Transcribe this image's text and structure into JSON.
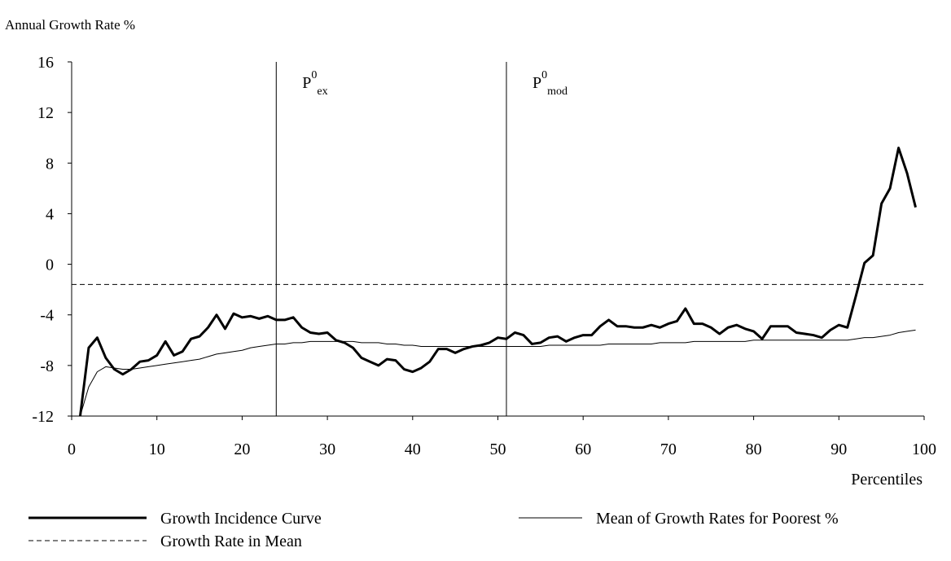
{
  "chart_data": {
    "type": "line",
    "ylabel": "Annual Growth Rate %",
    "xlabel": "Percentiles",
    "xlim": [
      0,
      100
    ],
    "xticks": [
      0,
      10,
      20,
      30,
      40,
      50,
      60,
      70,
      80,
      90,
      100
    ],
    "ylim": [
      -12,
      16
    ],
    "yticks": [
      -12,
      -8,
      -4,
      0,
      4,
      8,
      12,
      16
    ],
    "x": [
      1,
      2,
      3,
      4,
      5,
      6,
      7,
      8,
      9,
      10,
      11,
      12,
      13,
      14,
      15,
      16,
      17,
      18,
      19,
      20,
      21,
      22,
      23,
      24,
      25,
      26,
      27,
      28,
      29,
      30,
      31,
      32,
      33,
      34,
      35,
      36,
      37,
      38,
      39,
      40,
      41,
      42,
      43,
      44,
      45,
      46,
      47,
      48,
      49,
      50,
      51,
      52,
      53,
      54,
      55,
      56,
      57,
      58,
      59,
      60,
      61,
      62,
      63,
      64,
      65,
      66,
      67,
      68,
      69,
      70,
      71,
      72,
      73,
      74,
      75,
      76,
      77,
      78,
      79,
      80,
      81,
      82,
      83,
      84,
      85,
      86,
      87,
      88,
      89,
      90,
      91,
      92,
      93,
      94,
      95,
      96,
      97,
      98,
      99
    ],
    "series": [
      {
        "name": "Growth Incidence Curve",
        "color": "#000000",
        "width": 3,
        "values": [
          -12,
          -6.6,
          -5.8,
          -7.4,
          -8.3,
          -8.7,
          -8.3,
          -7.7,
          -7.6,
          -7.2,
          -6.1,
          -7.2,
          -6.9,
          -5.9,
          -5.7,
          -5.0,
          -4.0,
          -5.1,
          -3.9,
          -4.2,
          -4.1,
          -4.3,
          -4.1,
          -4.4,
          -4.4,
          -4.2,
          -5.0,
          -5.4,
          -5.5,
          -5.4,
          -6.0,
          -6.2,
          -6.6,
          -7.4,
          -7.7,
          -8.0,
          -7.5,
          -7.6,
          -8.3,
          -8.5,
          -8.2,
          -7.7,
          -6.7,
          -6.7,
          -7.0,
          -6.7,
          -6.5,
          -6.4,
          -6.2,
          -5.8,
          -5.9,
          -5.4,
          -5.6,
          -6.3,
          -6.2,
          -5.8,
          -5.7,
          -6.1,
          -5.8,
          -5.6,
          -5.6,
          -4.9,
          -4.4,
          -4.9,
          -4.9,
          -5.0,
          -5.0,
          -4.8,
          -5.0,
          -4.7,
          -4.5,
          -3.5,
          -4.7,
          -4.7,
          -5.0,
          -5.5,
          -5.0,
          -4.8,
          -5.1,
          -5.3,
          -5.9,
          -4.9,
          -4.9,
          -4.9,
          -5.4,
          -5.5,
          -5.6,
          -5.8,
          -5.2,
          -4.8,
          -5.0,
          -2.5,
          0.1,
          0.7,
          4.8,
          6.0,
          9.2,
          7.2,
          4.5
        ]
      },
      {
        "name": "Mean of Growth Rates for Poorest %",
        "color": "#000000",
        "width": 1,
        "values": [
          -12,
          -9.7,
          -8.5,
          -8.1,
          -8.2,
          -8.3,
          -8.3,
          -8.2,
          -8.1,
          -8.0,
          -7.9,
          -7.8,
          -7.7,
          -7.6,
          -7.5,
          -7.3,
          -7.1,
          -7.0,
          -6.9,
          -6.8,
          -6.6,
          -6.5,
          -6.4,
          -6.3,
          -6.3,
          -6.2,
          -6.2,
          -6.1,
          -6.1,
          -6.1,
          -6.1,
          -6.1,
          -6.1,
          -6.2,
          -6.2,
          -6.2,
          -6.3,
          -6.3,
          -6.4,
          -6.4,
          -6.5,
          -6.5,
          -6.5,
          -6.5,
          -6.5,
          -6.5,
          -6.5,
          -6.5,
          -6.5,
          -6.5,
          -6.5,
          -6.5,
          -6.5,
          -6.5,
          -6.5,
          -6.4,
          -6.4,
          -6.4,
          -6.4,
          -6.4,
          -6.4,
          -6.4,
          -6.3,
          -6.3,
          -6.3,
          -6.3,
          -6.3,
          -6.3,
          -6.2,
          -6.2,
          -6.2,
          -6.2,
          -6.1,
          -6.1,
          -6.1,
          -6.1,
          -6.1,
          -6.1,
          -6.1,
          -6.0,
          -6.0,
          -6.0,
          -6.0,
          -6.0,
          -6.0,
          -6.0,
          -6.0,
          -6.0,
          -6.0,
          -6.0,
          -6.0,
          -5.9,
          -5.8,
          -5.8,
          -5.7,
          -5.6,
          -5.4,
          -5.3,
          -5.2
        ]
      }
    ],
    "hlines": [
      {
        "name": "Growth Rate in Mean",
        "value": -1.6,
        "color": "#000000",
        "dashed": true
      }
    ],
    "vlines": [
      {
        "x": 24,
        "label": {
          "base": "P",
          "sup": "0",
          "sub": "ex"
        }
      },
      {
        "x": 51,
        "label": {
          "base": "P",
          "sup": "0",
          "sub": "mod"
        }
      }
    ]
  }
}
